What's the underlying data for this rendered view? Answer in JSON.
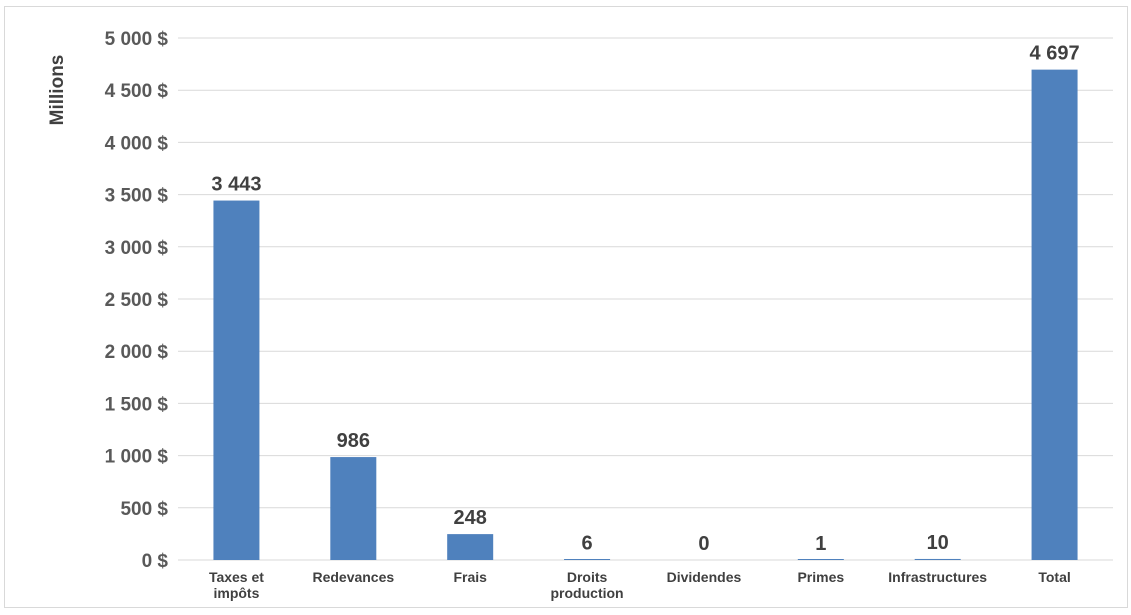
{
  "chart_data": {
    "type": "bar",
    "title": "",
    "xlabel": "",
    "ylabel": "Millions",
    "ylim": [
      0,
      5000
    ],
    "ytick_step": 500,
    "yticks": [
      "0 $",
      "500 $",
      "1 000 $",
      "1 500 $",
      "2 000 $",
      "2 500 $",
      "3 000 $",
      "3 500 $",
      "4 000 $",
      "4 500 $",
      "5 000 $"
    ],
    "grid": true,
    "legend": "none",
    "bar_color": "#4f81bd",
    "categories": [
      [
        "Taxes et",
        "impôts"
      ],
      [
        "Redevances"
      ],
      [
        "Frais"
      ],
      [
        "Droits",
        "production"
      ],
      [
        "Dividendes"
      ],
      [
        "Primes"
      ],
      [
        "Infrastructures"
      ],
      [
        "Total"
      ]
    ],
    "values": [
      3443,
      986,
      248,
      6,
      0,
      1,
      10,
      4697
    ],
    "data_labels": [
      "3 443",
      "986",
      "248",
      "6",
      "0",
      "1",
      "10",
      "4 697"
    ]
  }
}
